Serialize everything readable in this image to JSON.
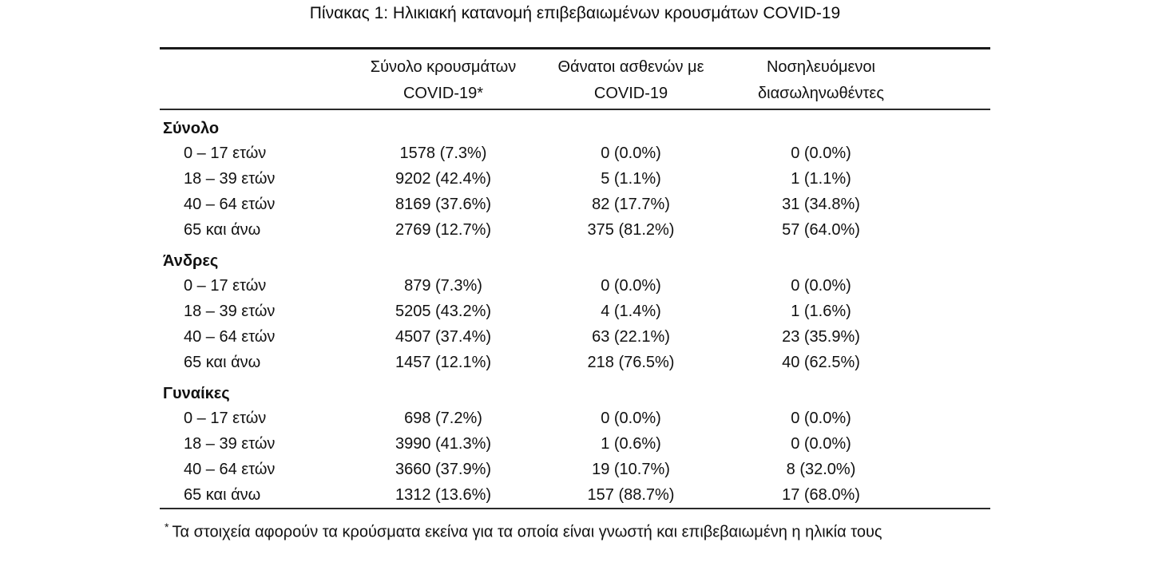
{
  "caption": "Πίνακας 1: Ηλικιακή κατανομή επιβεβαιωμένων κρουσμάτων COVID-19",
  "table": {
    "headers": [
      {
        "line1": "Σύνολο κρουσμάτων",
        "line2": "COVID-19*"
      },
      {
        "line1": "Θάνατοι ασθενών με",
        "line2": "COVID-19"
      },
      {
        "line1": "Νοσηλευόμενοι",
        "line2": "διασωληνωθέντες"
      }
    ],
    "sections": [
      {
        "label": "Σύνολο",
        "rows": [
          {
            "label": "0 – 17 ετών",
            "cases": "1578 (7.3%)",
            "deaths": "0 (0.0%)",
            "intubated": "0 (0.0%)"
          },
          {
            "label": "18 – 39 ετών",
            "cases": "9202 (42.4%)",
            "deaths": "5 (1.1%)",
            "intubated": "1 (1.1%)"
          },
          {
            "label": "40 – 64 ετών",
            "cases": "8169 (37.6%)",
            "deaths": "82 (17.7%)",
            "intubated": "31 (34.8%)"
          },
          {
            "label": "65 και άνω",
            "cases": "2769 (12.7%)",
            "deaths": "375 (81.2%)",
            "intubated": "57 (64.0%)"
          }
        ]
      },
      {
        "label": "Άνδρες",
        "rows": [
          {
            "label": "0 – 17 ετών",
            "cases": "879 (7.3%)",
            "deaths": "0 (0.0%)",
            "intubated": "0 (0.0%)"
          },
          {
            "label": "18 – 39 ετών",
            "cases": "5205 (43.2%)",
            "deaths": "4 (1.4%)",
            "intubated": "1 (1.6%)"
          },
          {
            "label": "40 – 64 ετών",
            "cases": "4507 (37.4%)",
            "deaths": "63 (22.1%)",
            "intubated": "23 (35.9%)"
          },
          {
            "label": "65 και άνω",
            "cases": "1457 (12.1%)",
            "deaths": "218 (76.5%)",
            "intubated": "40 (62.5%)"
          }
        ]
      },
      {
        "label": "Γυναίκες",
        "rows": [
          {
            "label": "0 – 17 ετών",
            "cases": "698 (7.2%)",
            "deaths": "0 (0.0%)",
            "intubated": "0 (0.0%)"
          },
          {
            "label": "18 – 39 ετών",
            "cases": "3990 (41.3%)",
            "deaths": "1 (0.6%)",
            "intubated": "0 (0.0%)"
          },
          {
            "label": "40 – 64 ετών",
            "cases": "3660 (37.9%)",
            "deaths": "19 (10.7%)",
            "intubated": "8 (32.0%)"
          },
          {
            "label": "65 και άνω",
            "cases": "1312 (13.6%)",
            "deaths": "157 (88.7%)",
            "intubated": "17 (68.0%)"
          }
        ]
      }
    ]
  },
  "footnote": {
    "marker": "*",
    "text": "Τα στοιχεία αφορούν τα κρούσματα εκείνα για τα οποία είναι γνωστή και επιβεβαιωμένη η ηλικία τους"
  },
  "colors": {
    "background": "#ffffff",
    "text": "#111111",
    "rule": "#2a2a2a"
  }
}
